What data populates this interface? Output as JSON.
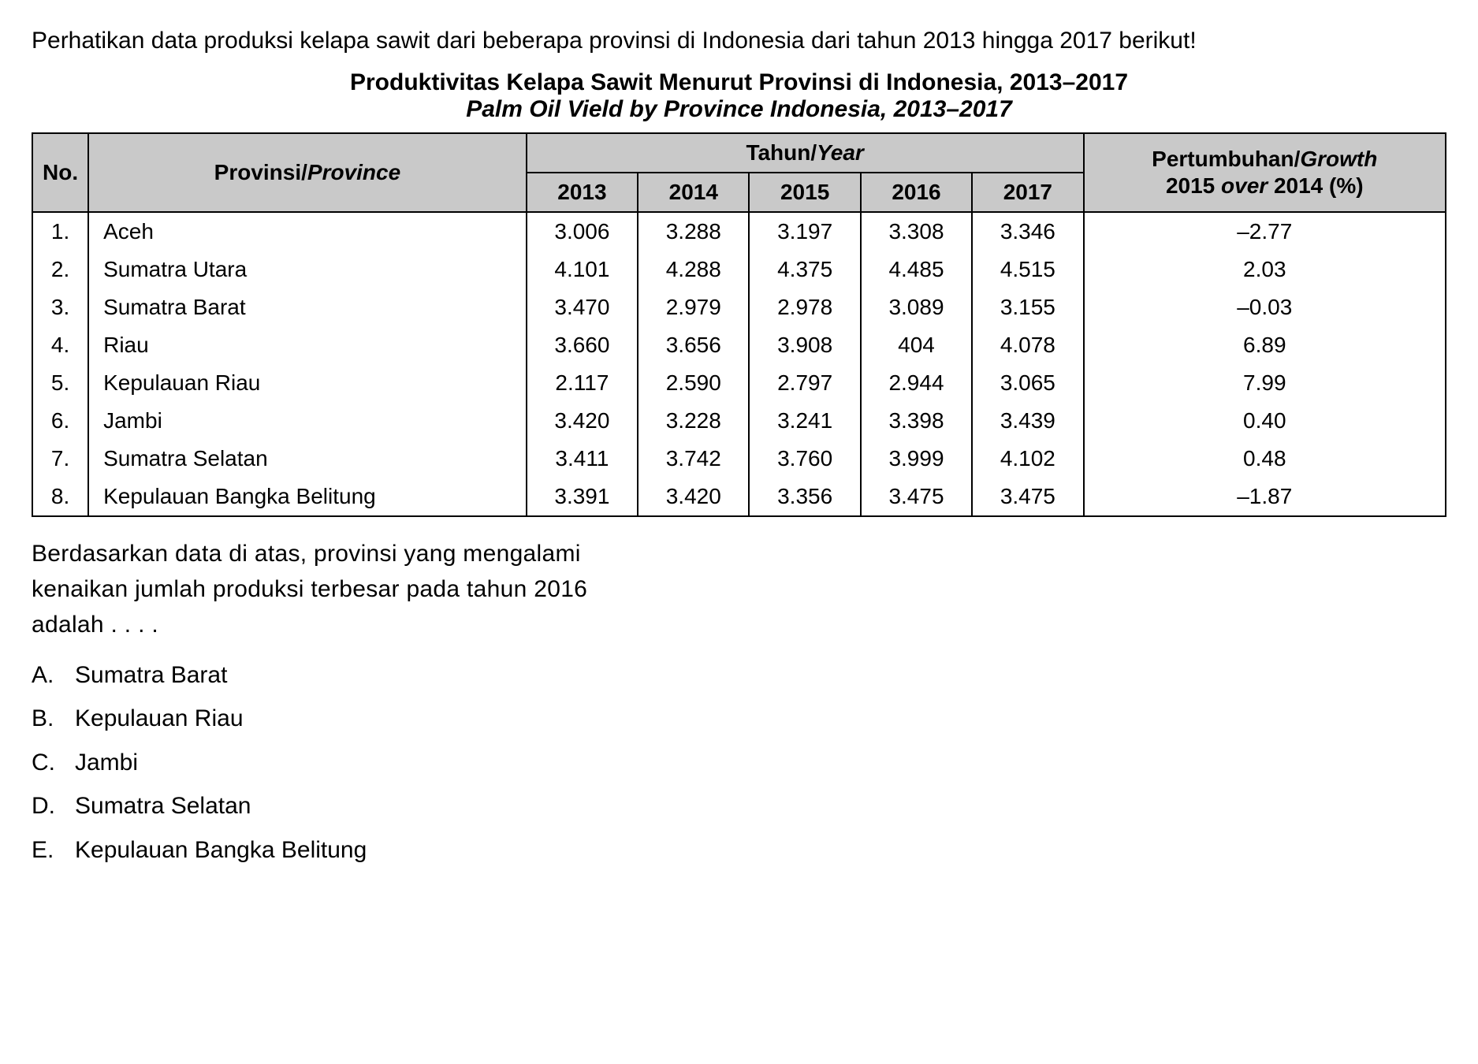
{
  "intro": "Perhatikan data produksi kelapa sawit dari beberapa provinsi di Indonesia dari tahun 2013 hingga 2017 berikut!",
  "title_main": "Produktivitas Kelapa Sawit Menurut Provinsi di Indonesia, 2013–2017",
  "title_sub": "Palm Oil Vield by Province Indonesia, 2013–2017",
  "table": {
    "header_bg": "#c9c9c9",
    "border_color": "#000000",
    "font_size": 28,
    "col_no": "No.",
    "col_province_main": "Provinsi/",
    "col_province_ital": "Province",
    "col_year_main": "Tahun/",
    "col_year_ital": "Year",
    "years": [
      "2013",
      "2014",
      "2015",
      "2016",
      "2017"
    ],
    "col_growth_line1_a": "Pertumbuhan/",
    "col_growth_line1_b": "Growth",
    "col_growth_line2_a": "2015 ",
    "col_growth_line2_b": "over",
    "col_growth_line2_c": " 2014 (%)",
    "rows": [
      {
        "no": "1.",
        "province": "Aceh",
        "y2013": "3.006",
        "y2014": "3.288",
        "y2015": "3.197",
        "y2016": "3.308",
        "y2017": "3.346",
        "growth": "–2.77"
      },
      {
        "no": "2.",
        "province": "Sumatra Utara",
        "y2013": "4.101",
        "y2014": "4.288",
        "y2015": "4.375",
        "y2016": "4.485",
        "y2017": "4.515",
        "growth": "2.03"
      },
      {
        "no": "3.",
        "province": "Sumatra Barat",
        "y2013": "3.470",
        "y2014": "2.979",
        "y2015": "2.978",
        "y2016": "3.089",
        "y2017": "3.155",
        "growth": "–0.03"
      },
      {
        "no": "4.",
        "province": "Riau",
        "y2013": "3.660",
        "y2014": "3.656",
        "y2015": "3.908",
        "y2016": "404",
        "y2017": "4.078",
        "growth": "6.89"
      },
      {
        "no": "5.",
        "province": "Kepulauan Riau",
        "y2013": "2.117",
        "y2014": "2.590",
        "y2015": "2.797",
        "y2016": "2.944",
        "y2017": "3.065",
        "growth": "7.99"
      },
      {
        "no": "6.",
        "province": "Jambi",
        "y2013": "3.420",
        "y2014": "3.228",
        "y2015": "3.241",
        "y2016": "3.398",
        "y2017": "3.439",
        "growth": "0.40"
      },
      {
        "no": "7.",
        "province": "Sumatra Selatan",
        "y2013": "3.411",
        "y2014": "3.742",
        "y2015": "3.760",
        "y2016": "3.999",
        "y2017": "4.102",
        "growth": "0.48"
      },
      {
        "no": "8.",
        "province": "Kepulauan Bangka Belitung",
        "y2013": "3.391",
        "y2014": "3.420",
        "y2015": "3.356",
        "y2016": "3.475",
        "y2017": "3.475",
        "growth": "–1.87"
      }
    ]
  },
  "question": "Berdasarkan data di atas, provinsi yang mengalami kenaikan jumlah produksi terbesar pada tahun 2016 adalah . . . .",
  "options": [
    {
      "letter": "A.",
      "text": "Sumatra Barat"
    },
    {
      "letter": "B.",
      "text": "Kepulauan Riau"
    },
    {
      "letter": "C.",
      "text": "Jambi"
    },
    {
      "letter": "D.",
      "text": "Sumatra Selatan"
    },
    {
      "letter": "E.",
      "text": "Kepulauan Bangka Belitung"
    }
  ]
}
